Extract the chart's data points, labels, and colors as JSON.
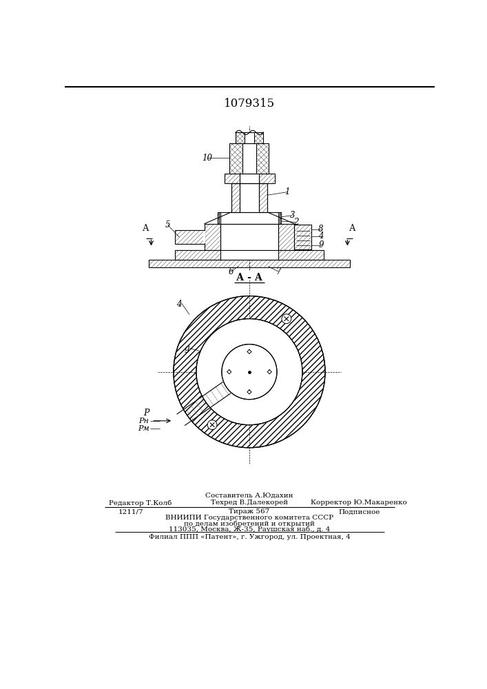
{
  "patent_number": "1079315",
  "bg": "#ffffff",
  "lc": "#000000",
  "figsize": [
    7.07,
    10.0
  ],
  "dpi": 100,
  "footer": {
    "sestavitel": "Составитель А.Юдахин",
    "redaktor": "Редактор Т.Колб",
    "tehred": "Техред В.Далекорей",
    "korrektor": "Корректор Ю.Макаренко",
    "zakaz": "1211/7",
    "tirazh": "Тираж 567",
    "podpisnoe": "Подписное",
    "vniipи": "ВНИИПИ Государственного комитета СССР",
    "po_delam": "по делам изобретений и открытий",
    "address": "113035, Москва, Ж-35, Раушская наб., д. 4",
    "filial": "Филиал ППП «Патент», г. Ужгород, ул. Проектная, 4"
  }
}
